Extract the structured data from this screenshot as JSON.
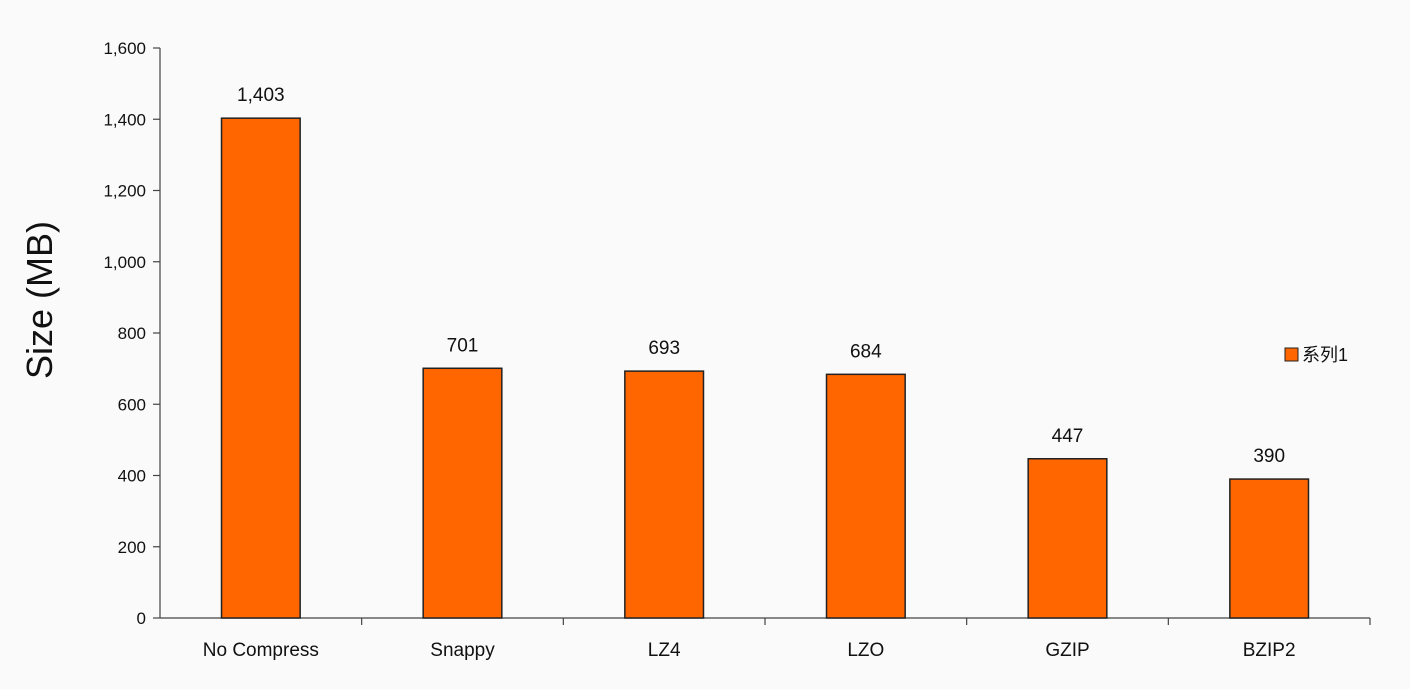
{
  "chart_data": {
    "type": "bar",
    "categories": [
      "No Compress",
      "Snappy",
      "LZ4",
      "LZO",
      "GZIP",
      "BZIP2"
    ],
    "series": [
      {
        "name": "系列1",
        "values": [
          1403,
          701,
          693,
          684,
          447,
          390
        ],
        "color": "#ff6600"
      }
    ],
    "data_labels": [
      "1,403",
      "701",
      "693",
      "684",
      "447",
      "390"
    ],
    "ylabel": "Size (MB)",
    "xlabel": "",
    "ylim": [
      0,
      1600
    ],
    "yticks": [
      0,
      200,
      400,
      600,
      800,
      1000,
      1200,
      1400,
      1600
    ],
    "ytick_labels": [
      "0",
      "200",
      "400",
      "600",
      "800",
      "1,000",
      "1,200",
      "1,400",
      "1,600"
    ],
    "grid": false,
    "legend_position": "right"
  }
}
